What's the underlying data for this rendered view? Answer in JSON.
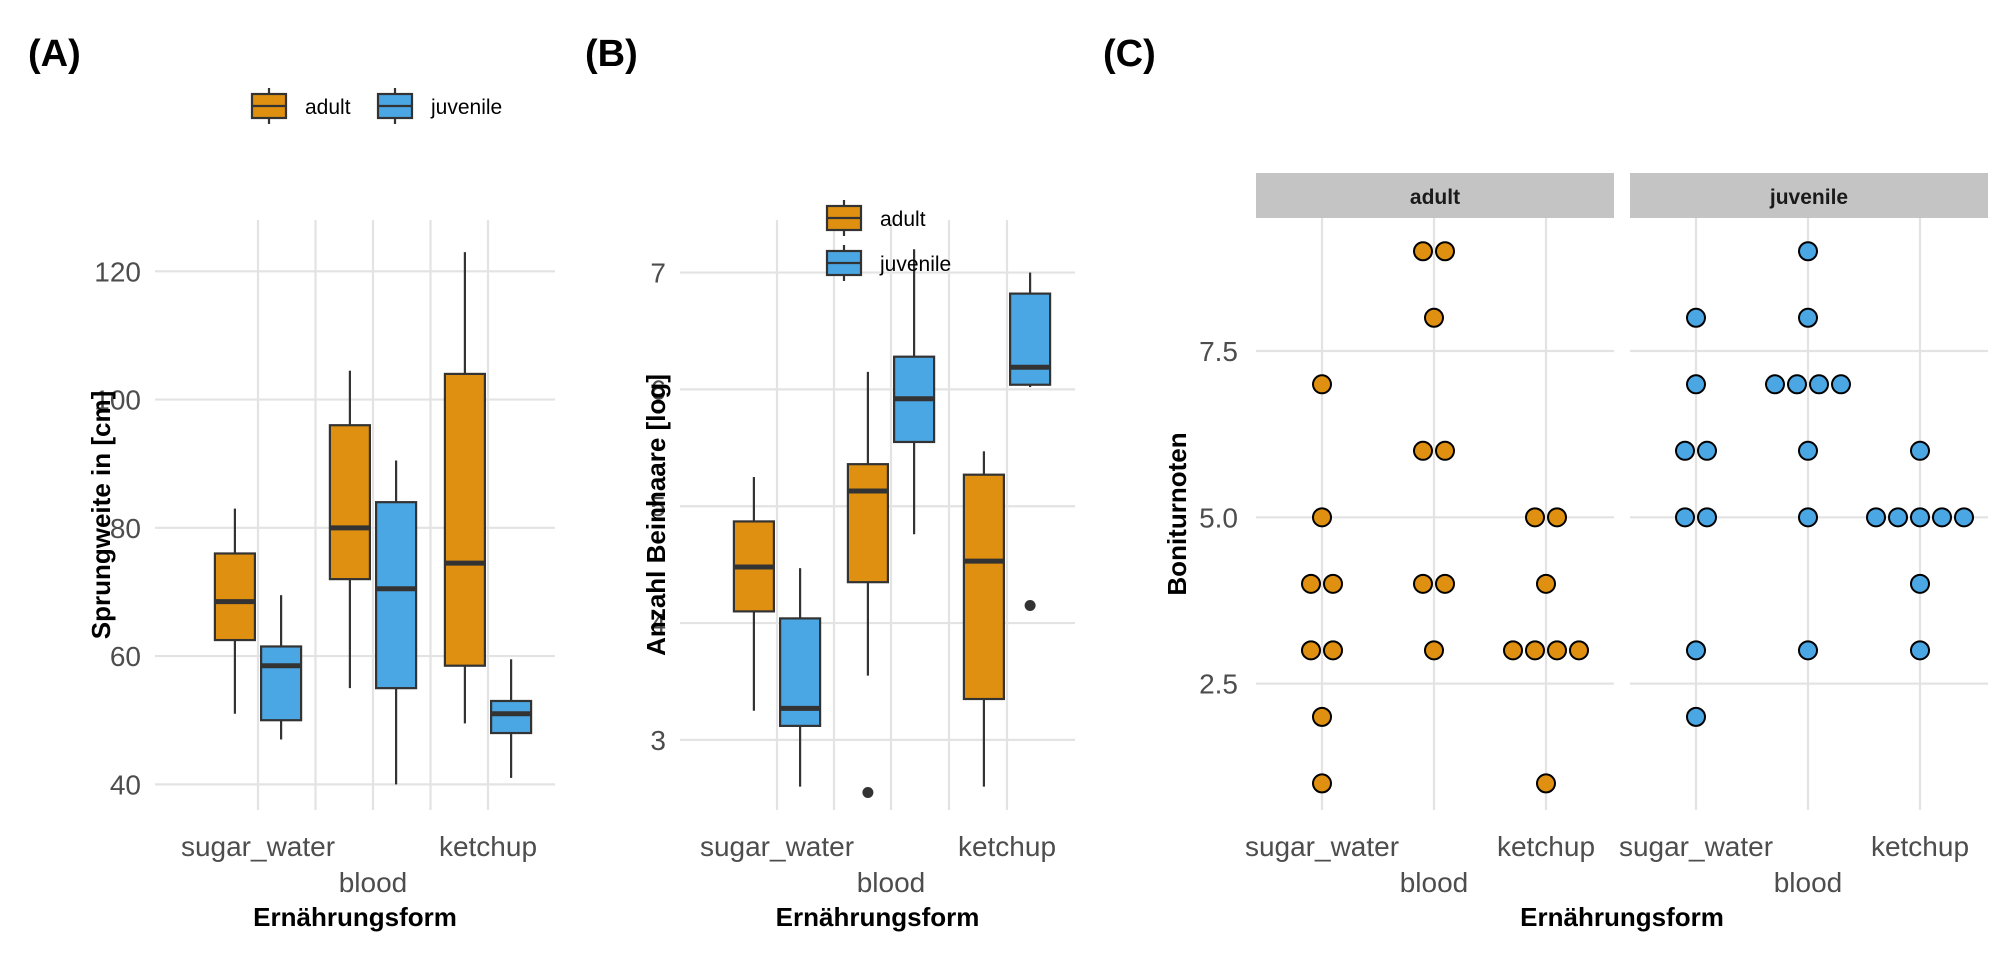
{
  "colors": {
    "adult": "#E09010",
    "juvenile": "#4BA6E4"
  },
  "chart_data": [
    {
      "tag": "(A)",
      "type": "boxplot",
      "xlabel": "Ernährungsform",
      "ylabel": "Sprungweite in [cm]",
      "categories": [
        "sugar_water",
        "blood",
        "ketchup"
      ],
      "ylim": [
        36,
        128
      ],
      "yticks": [
        40,
        60,
        80,
        100,
        120
      ],
      "legend": {
        "position": "top",
        "entries": [
          "adult",
          "juvenile"
        ]
      },
      "series": [
        {
          "name": "adult",
          "boxes": [
            {
              "lower": 51,
              "q1": 62.5,
              "median": 68.5,
              "q3": 76,
              "upper": 83,
              "outliers": []
            },
            {
              "lower": 55,
              "q1": 72,
              "median": 80,
              "q3": 96,
              "upper": 104.5,
              "outliers": []
            },
            {
              "lower": 49.5,
              "q1": 58.5,
              "median": 74.5,
              "q3": 104,
              "upper": 123,
              "outliers": []
            }
          ]
        },
        {
          "name": "juvenile",
          "boxes": [
            {
              "lower": 47,
              "q1": 50,
              "median": 58.5,
              "q3": 61.5,
              "upper": 69.5,
              "outliers": []
            },
            {
              "lower": 40,
              "q1": 55,
              "median": 70.5,
              "q3": 84,
              "upper": 90.5,
              "outliers": []
            },
            {
              "lower": 41,
              "q1": 48,
              "median": 51,
              "q3": 53,
              "upper": 59.5,
              "outliers": []
            }
          ]
        }
      ]
    },
    {
      "tag": "(B)",
      "type": "boxplot",
      "xlabel": "Ernährungsform",
      "ylabel": "Anzahl Beinhaare [log]",
      "categories": [
        "sugar_water",
        "blood",
        "ketchup"
      ],
      "ylim": [
        2.4,
        7.45
      ],
      "yticks": [
        3,
        4,
        5,
        6,
        7
      ],
      "legend": {
        "position": "inside-top-center",
        "entries": [
          "adult",
          "juvenile"
        ]
      },
      "series": [
        {
          "name": "adult",
          "boxes": [
            {
              "lower": 3.25,
              "q1": 4.1,
              "median": 4.48,
              "q3": 4.87,
              "upper": 5.25,
              "outliers": []
            },
            {
              "lower": 3.55,
              "q1": 4.35,
              "median": 5.13,
              "q3": 5.36,
              "upper": 6.15,
              "outliers": [
                2.55
              ]
            },
            {
              "lower": 2.6,
              "q1": 3.35,
              "median": 4.53,
              "q3": 5.27,
              "upper": 5.47,
              "outliers": []
            }
          ]
        },
        {
          "name": "juvenile",
          "boxes": [
            {
              "lower": 2.6,
              "q1": 3.12,
              "median": 3.27,
              "q3": 4.04,
              "upper": 4.47,
              "outliers": []
            },
            {
              "lower": 4.76,
              "q1": 5.55,
              "median": 5.92,
              "q3": 6.28,
              "upper": 7.2,
              "outliers": []
            },
            {
              "lower": 6.02,
              "q1": 6.04,
              "median": 6.19,
              "q3": 6.82,
              "upper": 7.0,
              "outliers": [
                4.15
              ]
            }
          ]
        }
      ]
    },
    {
      "tag": "(C)",
      "type": "dotplot",
      "xlabel": "Ernährungsform",
      "ylabel": "Boniturnoten",
      "categories": [
        "sugar_water",
        "blood",
        "ketchup"
      ],
      "ylim": [
        0.6,
        9.5
      ],
      "yticks": [
        2.5,
        5.0,
        7.5
      ],
      "ytick_labels": [
        "2.5",
        "5.0",
        "7.5"
      ],
      "panels": [
        {
          "strip": "adult",
          "groups": [
            {
              "category": "sugar_water",
              "values": [
                1,
                2,
                3,
                3,
                4,
                4,
                5,
                7
              ]
            },
            {
              "category": "blood",
              "values": [
                3,
                4,
                4,
                6,
                6,
                8,
                9,
                9
              ]
            },
            {
              "category": "ketchup",
              "values": [
                1,
                3,
                3,
                3,
                3,
                4,
                5,
                5
              ]
            }
          ]
        },
        {
          "strip": "juvenile",
          "groups": [
            {
              "category": "sugar_water",
              "values": [
                2,
                3,
                5,
                5,
                6,
                6,
                7,
                8
              ]
            },
            {
              "category": "blood",
              "values": [
                3,
                5,
                6,
                7,
                7,
                7,
                7,
                8,
                9
              ]
            },
            {
              "category": "ketchup",
              "values": [
                3,
                4,
                5,
                5,
                5,
                5,
                5,
                6
              ]
            }
          ]
        }
      ]
    }
  ]
}
